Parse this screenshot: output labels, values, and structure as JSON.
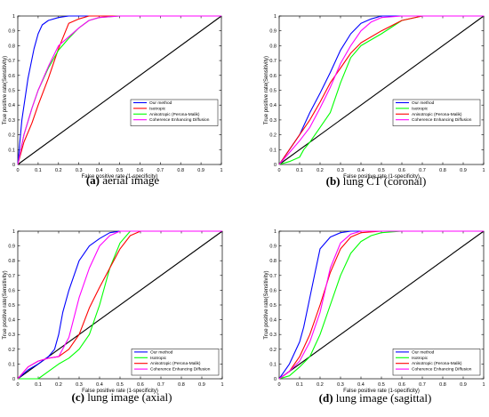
{
  "colors": {
    "axis": "#000000",
    "background": "#ffffff"
  },
  "chart_data": [
    {
      "type": "line",
      "caption_letter": "(a)",
      "caption_text": "aerial image",
      "xlabel": "False positive rate (1-specificity)",
      "ylabel": "True positive rate(Sensitivity)",
      "xlim": [
        0,
        1
      ],
      "ylim": [
        0,
        1
      ],
      "xticks": [
        "0",
        "0.1",
        "0.2",
        "0.3",
        "0.4",
        "0.5",
        "0.6",
        "0.7",
        "0.8",
        "0.9",
        "1"
      ],
      "yticks": [
        "0",
        "0.1",
        "0.2",
        "0.3",
        "0.4",
        "0.5",
        "0.6",
        "0.7",
        "0.8",
        "0.9",
        "1"
      ],
      "legend_position": "middle-right",
      "series": [
        {
          "name": "Our method",
          "color": "#0000ff",
          "x": [
            0,
            0.02,
            0.05,
            0.08,
            0.1,
            0.12,
            0.15,
            0.2,
            0.25,
            0.3,
            0.4,
            0.5,
            1
          ],
          "y": [
            0,
            0.3,
            0.58,
            0.78,
            0.88,
            0.94,
            0.97,
            0.99,
            1,
            1,
            1,
            1,
            1
          ]
        },
        {
          "name": "Isotropic",
          "color": "#ff0000",
          "x": [
            0,
            0.03,
            0.07,
            0.1,
            0.15,
            0.2,
            0.25,
            0.3,
            0.35,
            0.5,
            1
          ],
          "y": [
            0,
            0.15,
            0.28,
            0.4,
            0.58,
            0.78,
            0.95,
            0.98,
            1,
            1,
            1
          ]
        },
        {
          "name": "Anisotropic (Perona-Malik)",
          "color": "#00ff00",
          "x": [
            0,
            0.03,
            0.07,
            0.1,
            0.15,
            0.2,
            0.25,
            0.3,
            0.35,
            0.4,
            0.5,
            1
          ],
          "y": [
            0,
            0.2,
            0.38,
            0.5,
            0.65,
            0.77,
            0.85,
            0.92,
            0.97,
            0.99,
            1,
            1
          ]
        },
        {
          "name": "Coherence Enhancing Diffusion",
          "color": "#ff00ff",
          "x": [
            0,
            0.03,
            0.07,
            0.1,
            0.15,
            0.2,
            0.25,
            0.3,
            0.35,
            0.4,
            0.5,
            1
          ],
          "y": [
            0,
            0.2,
            0.38,
            0.5,
            0.66,
            0.8,
            0.86,
            0.92,
            0.97,
            0.99,
            1,
            1
          ]
        }
      ]
    },
    {
      "type": "line",
      "caption_letter": "(b)",
      "caption_text": "lung CT (coronal)",
      "xlabel": "False positive rate (1-specificity)",
      "ylabel": "True positive rate(Sensitivity)",
      "xlim": [
        0,
        1
      ],
      "ylim": [
        0,
        1
      ],
      "xticks": [
        "0",
        "0.1",
        "0.2",
        "0.3",
        "0.4",
        "0.5",
        "0.6",
        "0.7",
        "0.8",
        "0.9",
        "1"
      ],
      "yticks": [
        "0",
        "0.1",
        "0.2",
        "0.3",
        "0.4",
        "0.5",
        "0.6",
        "0.7",
        "0.8",
        "0.9",
        "1"
      ],
      "legend_position": "middle-right",
      "series": [
        {
          "name": "Our method",
          "color": "#0000ff",
          "x": [
            0,
            0.05,
            0.1,
            0.15,
            0.2,
            0.25,
            0.3,
            0.35,
            0.4,
            0.45,
            0.5,
            0.6,
            1
          ],
          "y": [
            0,
            0.1,
            0.2,
            0.35,
            0.48,
            0.62,
            0.77,
            0.88,
            0.95,
            0.98,
            1,
            1,
            1
          ]
        },
        {
          "name": "Isotropic",
          "color": "#00ff00",
          "x": [
            0,
            0.05,
            0.1,
            0.12,
            0.15,
            0.2,
            0.25,
            0.3,
            0.35,
            0.4,
            0.5,
            0.6,
            0.7,
            1
          ],
          "y": [
            0,
            0.02,
            0.05,
            0.1,
            0.15,
            0.25,
            0.35,
            0.55,
            0.72,
            0.8,
            0.88,
            0.97,
            1,
            1
          ]
        },
        {
          "name": "Anisotropic (Perona-Malik)",
          "color": "#ff0000",
          "x": [
            0,
            0.05,
            0.1,
            0.15,
            0.2,
            0.25,
            0.3,
            0.35,
            0.4,
            0.5,
            0.6,
            0.7,
            0.87,
            1
          ],
          "y": [
            0,
            0.1,
            0.2,
            0.3,
            0.42,
            0.55,
            0.65,
            0.75,
            0.82,
            0.9,
            0.97,
            1,
            1,
            1
          ]
        },
        {
          "name": "Coherence Enhancing Diffusion",
          "color": "#ff00ff",
          "x": [
            0,
            0.05,
            0.1,
            0.15,
            0.2,
            0.25,
            0.3,
            0.35,
            0.4,
            0.45,
            0.5,
            0.6,
            1
          ],
          "y": [
            0,
            0.08,
            0.16,
            0.25,
            0.38,
            0.52,
            0.68,
            0.8,
            0.9,
            0.96,
            0.99,
            1,
            1
          ]
        }
      ]
    },
    {
      "type": "line",
      "caption_letter": "(c)",
      "caption_text": "lung image (axial)",
      "xlabel": "False positive rate (1-specificity)",
      "ylabel": "True positive rate(Sensitivity)",
      "xlim": [
        0,
        1
      ],
      "ylim": [
        0,
        1
      ],
      "xticks": [
        "0",
        "0.1",
        "0.2",
        "0.3",
        "0.4",
        "0.5",
        "0.6",
        "0.7",
        "0.8",
        "0.9",
        "1"
      ],
      "yticks": [
        "0",
        "0.1",
        "0.2",
        "0.3",
        "0.4",
        "0.5",
        "0.6",
        "0.7",
        "0.8",
        "0.9",
        "1"
      ],
      "legend_position": "bottom-right",
      "series": [
        {
          "name": "Our method",
          "color": "#0000ff",
          "x": [
            0,
            0.05,
            0.1,
            0.15,
            0.18,
            0.2,
            0.22,
            0.25,
            0.3,
            0.35,
            0.4,
            0.45,
            0.5,
            1
          ],
          "y": [
            0,
            0.06,
            0.1,
            0.15,
            0.2,
            0.3,
            0.45,
            0.6,
            0.8,
            0.9,
            0.95,
            0.99,
            1,
            1
          ]
        },
        {
          "name": "Isotropic",
          "color": "#00ff00",
          "x": [
            0,
            0.05,
            0.1,
            0.15,
            0.2,
            0.25,
            0.3,
            0.35,
            0.4,
            0.45,
            0.5,
            0.55,
            1
          ],
          "y": [
            0,
            0,
            0,
            0.05,
            0.1,
            0.14,
            0.2,
            0.3,
            0.5,
            0.75,
            0.92,
            1,
            1
          ]
        },
        {
          "name": "Anisotropic (Perona-Malik)",
          "color": "#ff0000",
          "x": [
            0,
            0.05,
            0.1,
            0.15,
            0.2,
            0.25,
            0.3,
            0.35,
            0.4,
            0.45,
            0.5,
            0.55,
            0.6,
            1
          ],
          "y": [
            0,
            0.08,
            0.12,
            0.14,
            0.15,
            0.2,
            0.3,
            0.48,
            0.62,
            0.75,
            0.88,
            0.97,
            1,
            1
          ]
        },
        {
          "name": "Coherence Enhancing Diffusion",
          "color": "#ff00ff",
          "x": [
            0,
            0.05,
            0.1,
            0.15,
            0.2,
            0.25,
            0.3,
            0.35,
            0.4,
            0.45,
            0.5,
            0.55,
            1
          ],
          "y": [
            0,
            0.08,
            0.12,
            0.14,
            0.15,
            0.28,
            0.55,
            0.75,
            0.9,
            0.97,
            1,
            1,
            1
          ]
        }
      ]
    },
    {
      "type": "line",
      "caption_letter": "(d)",
      "caption_text": "lung image (sagittal)",
      "xlabel": "False positive rate (1-specificity)",
      "ylabel": "True positive rate(Sensitivity)",
      "xlim": [
        0,
        1
      ],
      "ylim": [
        0,
        1
      ],
      "xticks": [
        "0",
        "0.1",
        "0.2",
        "0.3",
        "0.4",
        "0.5",
        "0.6",
        "0.7",
        "0.8",
        "0.9",
        "1"
      ],
      "yticks": [
        "0",
        "0.1",
        "0.2",
        "0.3",
        "0.4",
        "0.5",
        "0.6",
        "0.7",
        "0.8",
        "0.9",
        "1"
      ],
      "legend_position": "bottom-right",
      "series": [
        {
          "name": "Our method",
          "color": "#0000ff",
          "x": [
            0,
            0.05,
            0.1,
            0.12,
            0.15,
            0.18,
            0.2,
            0.25,
            0.3,
            0.35,
            0.4,
            1
          ],
          "y": [
            0,
            0.1,
            0.25,
            0.35,
            0.55,
            0.75,
            0.88,
            0.96,
            0.99,
            1,
            1,
            1
          ]
        },
        {
          "name": "Isotropic",
          "color": "#00ff00",
          "x": [
            0,
            0.05,
            0.1,
            0.15,
            0.2,
            0.25,
            0.3,
            0.35,
            0.4,
            0.45,
            0.5,
            0.6,
            1
          ],
          "y": [
            0,
            0.02,
            0.08,
            0.15,
            0.3,
            0.5,
            0.7,
            0.85,
            0.93,
            0.97,
            0.99,
            1,
            1
          ]
        },
        {
          "name": "Anisotropic (Perona-Malik)",
          "color": "#ff0000",
          "x": [
            0,
            0.05,
            0.1,
            0.15,
            0.2,
            0.25,
            0.3,
            0.35,
            0.4,
            0.5,
            0.6,
            1
          ],
          "y": [
            0,
            0.05,
            0.15,
            0.3,
            0.5,
            0.72,
            0.88,
            0.96,
            0.99,
            1,
            1,
            1
          ]
        },
        {
          "name": "Coherence Enhancing Diffusion",
          "color": "#ff00ff",
          "x": [
            0,
            0.05,
            0.1,
            0.15,
            0.2,
            0.25,
            0.3,
            0.35,
            0.4,
            0.5,
            1
          ],
          "y": [
            0,
            0.05,
            0.12,
            0.25,
            0.45,
            0.75,
            0.92,
            0.98,
            1,
            1,
            1
          ]
        }
      ]
    }
  ]
}
